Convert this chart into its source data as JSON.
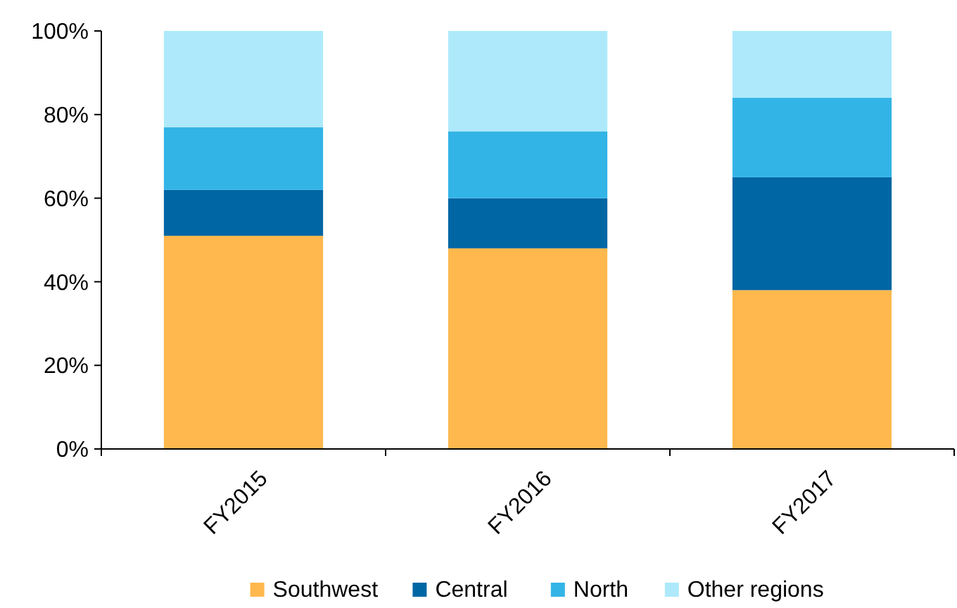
{
  "chart_data": {
    "type": "bar",
    "stacked": true,
    "categories": [
      "FY2015",
      "FY2016",
      "FY2017"
    ],
    "series": [
      {
        "name": "Southwest",
        "color": "#ffb84d",
        "values": [
          51,
          48,
          38
        ]
      },
      {
        "name": "Central",
        "color": "#0066a4",
        "values": [
          11,
          12,
          27
        ]
      },
      {
        "name": "North",
        "color": "#33b4e6",
        "values": [
          15,
          16,
          19
        ]
      },
      {
        "name": "Other regions",
        "color": "#aee9fb",
        "values": [
          23,
          24,
          16
        ]
      }
    ],
    "ylim": [
      0,
      100
    ],
    "yticks": [
      {
        "value": 0,
        "label": "0%"
      },
      {
        "value": 20,
        "label": "20%"
      },
      {
        "value": 40,
        "label": "40%"
      },
      {
        "value": 60,
        "label": "60%"
      },
      {
        "value": 80,
        "label": "80%"
      },
      {
        "value": 100,
        "label": "100%"
      }
    ],
    "grid": false,
    "legend": "bottom"
  }
}
